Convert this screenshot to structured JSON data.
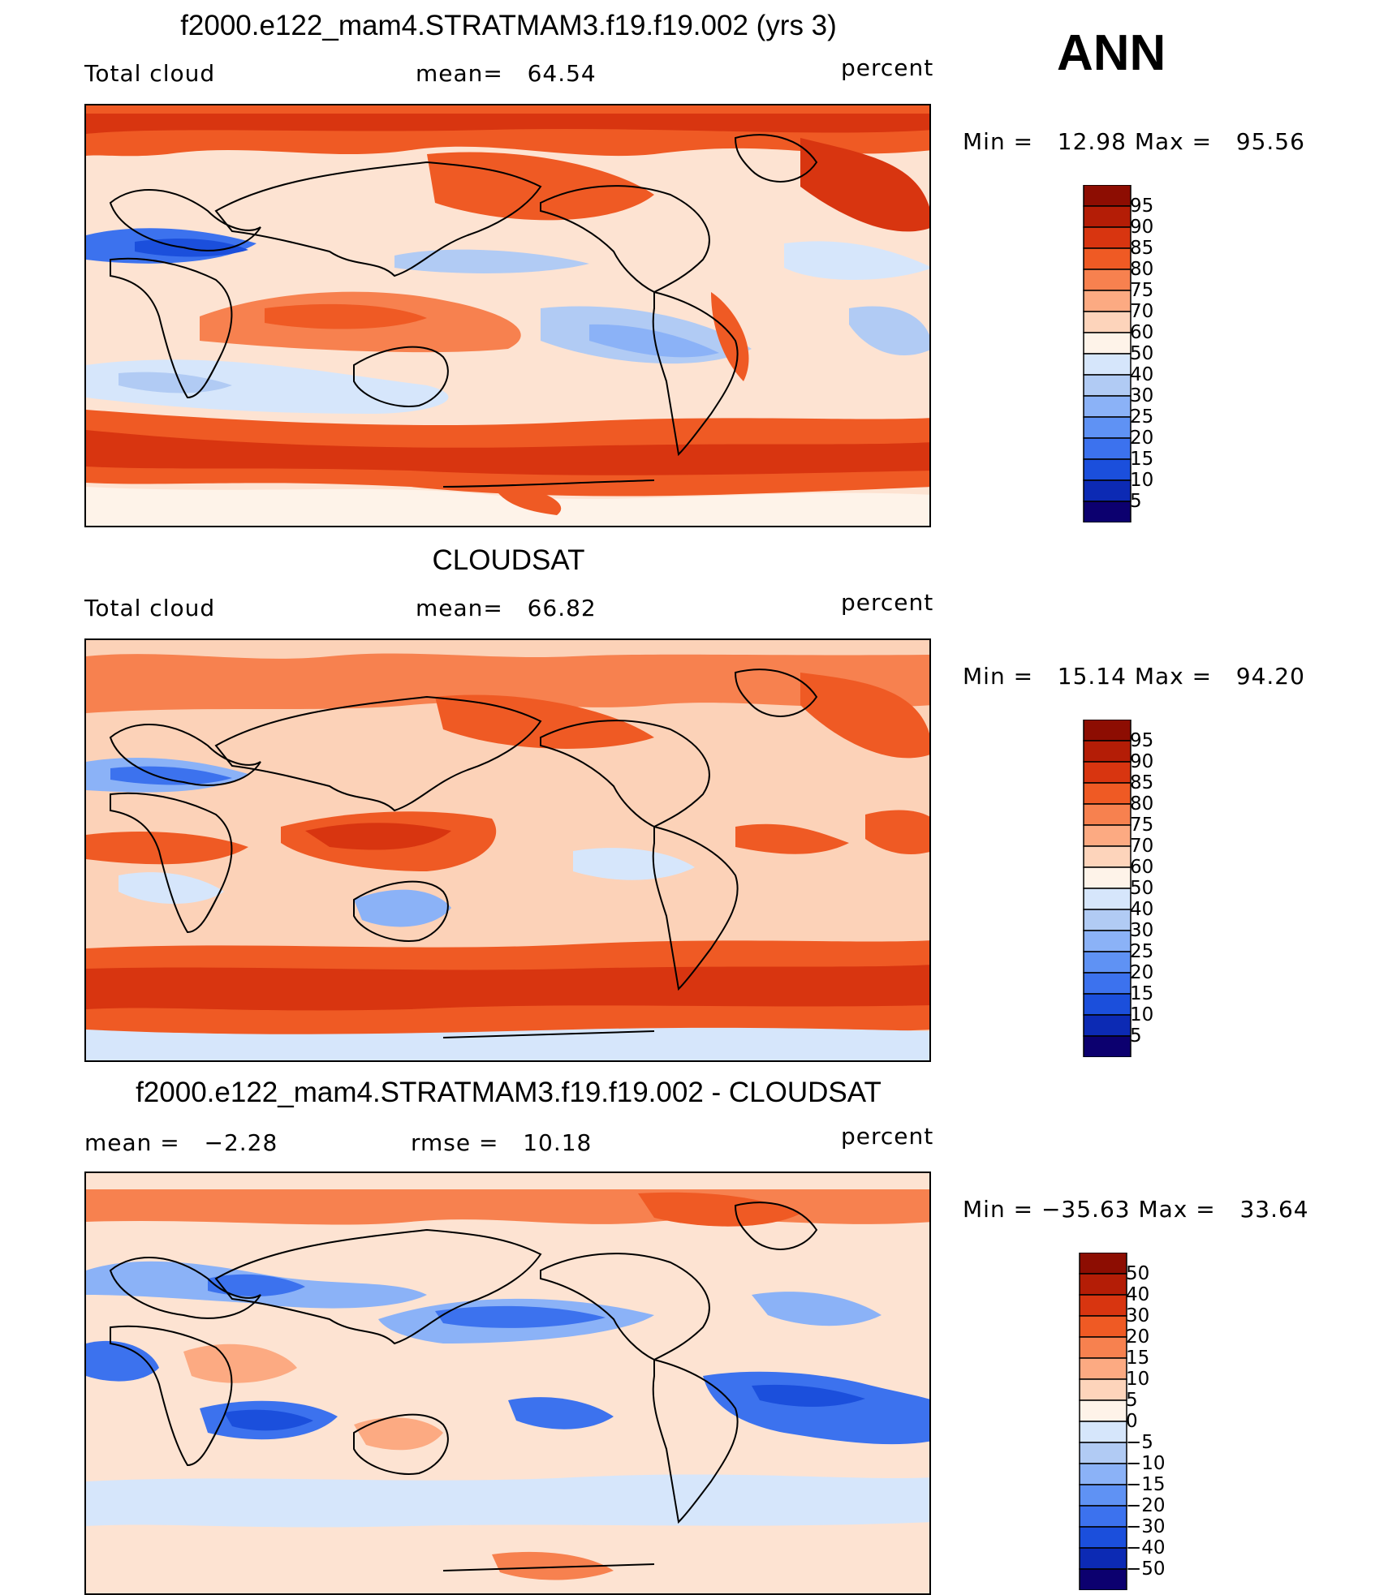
{
  "season": "ANN",
  "colors": {
    "seq": [
      "#0c006f",
      "#0c2ab4",
      "#1b4fdc",
      "#3c72ee",
      "#5f92f4",
      "#8bb2f7",
      "#b1cbf4",
      "#d6e6fb",
      "#fef3e9",
      "#fdd4bb",
      "#fcaa82",
      "#f7814f",
      "#ef5a24",
      "#d83510",
      "#b41d06",
      "#8d0d02"
    ],
    "diff": [
      "#0c006f",
      "#0c2ab4",
      "#1b4fdc",
      "#3c72ee",
      "#5f92f4",
      "#8bb2f7",
      "#b1cbf4",
      "#d6e6fb",
      "#fef3e9",
      "#fdd4bb",
      "#fcaa82",
      "#f7814f",
      "#ef5a24",
      "#d83510",
      "#b41d06",
      "#8d0d02"
    ],
    "coast": "#000000"
  },
  "panels": [
    {
      "title": "f2000.e122_mam4.STRATMAM3.f19.f19.002 (yrs 3)",
      "left_label": "Total cloud",
      "mean_label": "mean=",
      "mean_value": "64.54",
      "units": "percent",
      "min_label": "Min =",
      "min_value": "12.98",
      "max_label": "Max =",
      "max_value": "95.56",
      "colorbar": [
        "95",
        "90",
        "85",
        "80",
        "75",
        "70",
        "60",
        "50",
        "40",
        "30",
        "25",
        "20",
        "15",
        "10",
        "5"
      ]
    },
    {
      "title": "CLOUDSAT",
      "left_label": "Total cloud",
      "mean_label": "mean=",
      "mean_value": "66.82",
      "units": "percent",
      "min_label": "Min =",
      "min_value": "15.14",
      "max_label": "Max =",
      "max_value": "94.20",
      "colorbar": [
        "95",
        "90",
        "85",
        "80",
        "75",
        "70",
        "60",
        "50",
        "40",
        "30",
        "25",
        "20",
        "15",
        "10",
        "5"
      ]
    },
    {
      "title": "f2000.e122_mam4.STRATMAM3.f19.f19.002 - CLOUDSAT",
      "mean_label": "mean =",
      "mean_value": "−2.28",
      "rmse_label": "rmse =",
      "rmse_value": "10.18",
      "units": "percent",
      "min_label": "Min =",
      "min_value": "−35.63",
      "max_label": "Max =",
      "max_value": "33.64",
      "colorbar": [
        "50",
        "40",
        "30",
        "20",
        "15",
        "10",
        "5",
        "0",
        "−5",
        "−10",
        "−15",
        "−20",
        "−30",
        "−40",
        "−50"
      ]
    }
  ]
}
